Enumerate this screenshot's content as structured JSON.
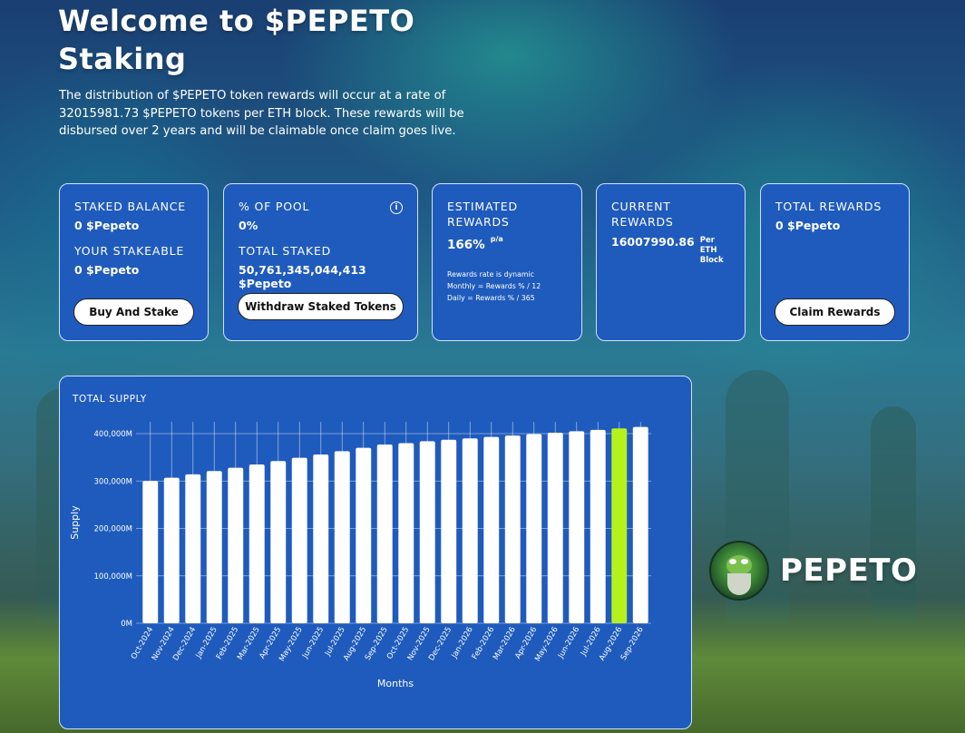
{
  "header": {
    "title": "Welcome to $PEPETO Staking",
    "intro": "The distribution of $PEPETO token rewards will occur at a rate of 32015981.73 $PEPETO tokens per ETH block. These rewards will be disbursed over 2 years and will be claimable once claim goes live."
  },
  "cards": {
    "staked": {
      "staked_label": "STAKED BALANCE",
      "staked_value": "0 $Pepeto",
      "stakeable_label": "YOUR STAKEABLE",
      "stakeable_value": "0 $Pepeto",
      "button": "Buy And Stake"
    },
    "pool": {
      "pool_label": "% OF POOL",
      "pool_value": "0%",
      "info_icon": "info-icon",
      "total_label": "TOTAL STAKED",
      "total_value": "50,761,345,044,413 $Pepeto",
      "button": "Withdraw Staked Tokens"
    },
    "estimated": {
      "label": "ESTIMATED REWARDS",
      "rate": "166%",
      "rate_unit": "p/a",
      "note1": "Rewards rate is dynamic",
      "note2": "Monthly = Rewards % / 12",
      "note3": "Daily = Rewards % / 365"
    },
    "current": {
      "label": "CURRENT REWARDS",
      "value": "16007990.86",
      "unit": "Per ETH Block"
    },
    "total": {
      "label": "TOTAL REWARDS",
      "value": "0 $Pepeto",
      "button": "Claim Rewards"
    }
  },
  "chart_section": {
    "title": "TOTAL SUPPLY"
  },
  "chart_data": {
    "type": "bar",
    "title": "TOTAL SUPPLY",
    "xlabel": "Months",
    "ylabel": "Supply",
    "ylim": [
      0,
      400000
    ],
    "yticks": [
      "0M",
      "100,000M",
      "200,000M",
      "300,000M",
      "400,000M"
    ],
    "categories": [
      "Oct-2024",
      "Nov-2024",
      "Dec-2024",
      "Jan-2025",
      "Feb-2025",
      "Mar-2025",
      "Apr-2025",
      "May-2025",
      "Jun-2025",
      "Jul-2025",
      "Aug-2025",
      "Sep-2025",
      "Oct-2025",
      "Nov-2025",
      "Dec-2025",
      "Jan-2026",
      "Feb-2026",
      "Mar-2026",
      "Apr-2026",
      "May-2026",
      "Jun-2026",
      "Jul-2026",
      "Aug-2026",
      "Sep-2026"
    ],
    "values": [
      300000,
      307000,
      314000,
      321000,
      328000,
      335000,
      342000,
      349000,
      356000,
      363000,
      370000,
      377000,
      380000,
      384000,
      387000,
      390000,
      393000,
      396000,
      399000,
      402000,
      405000,
      408000,
      411000,
      414000
    ],
    "highlight_index": 22,
    "bar_color": "#ffffff",
    "highlight_color": "#b5f21c",
    "grid": true
  },
  "brand": {
    "logo_icon": "pepe-logo-icon",
    "name": "PEPETO"
  },
  "colors": {
    "card_bg": "#1f5bbd",
    "card_border": "#cfe2ff",
    "accent": "#b5f21c"
  }
}
